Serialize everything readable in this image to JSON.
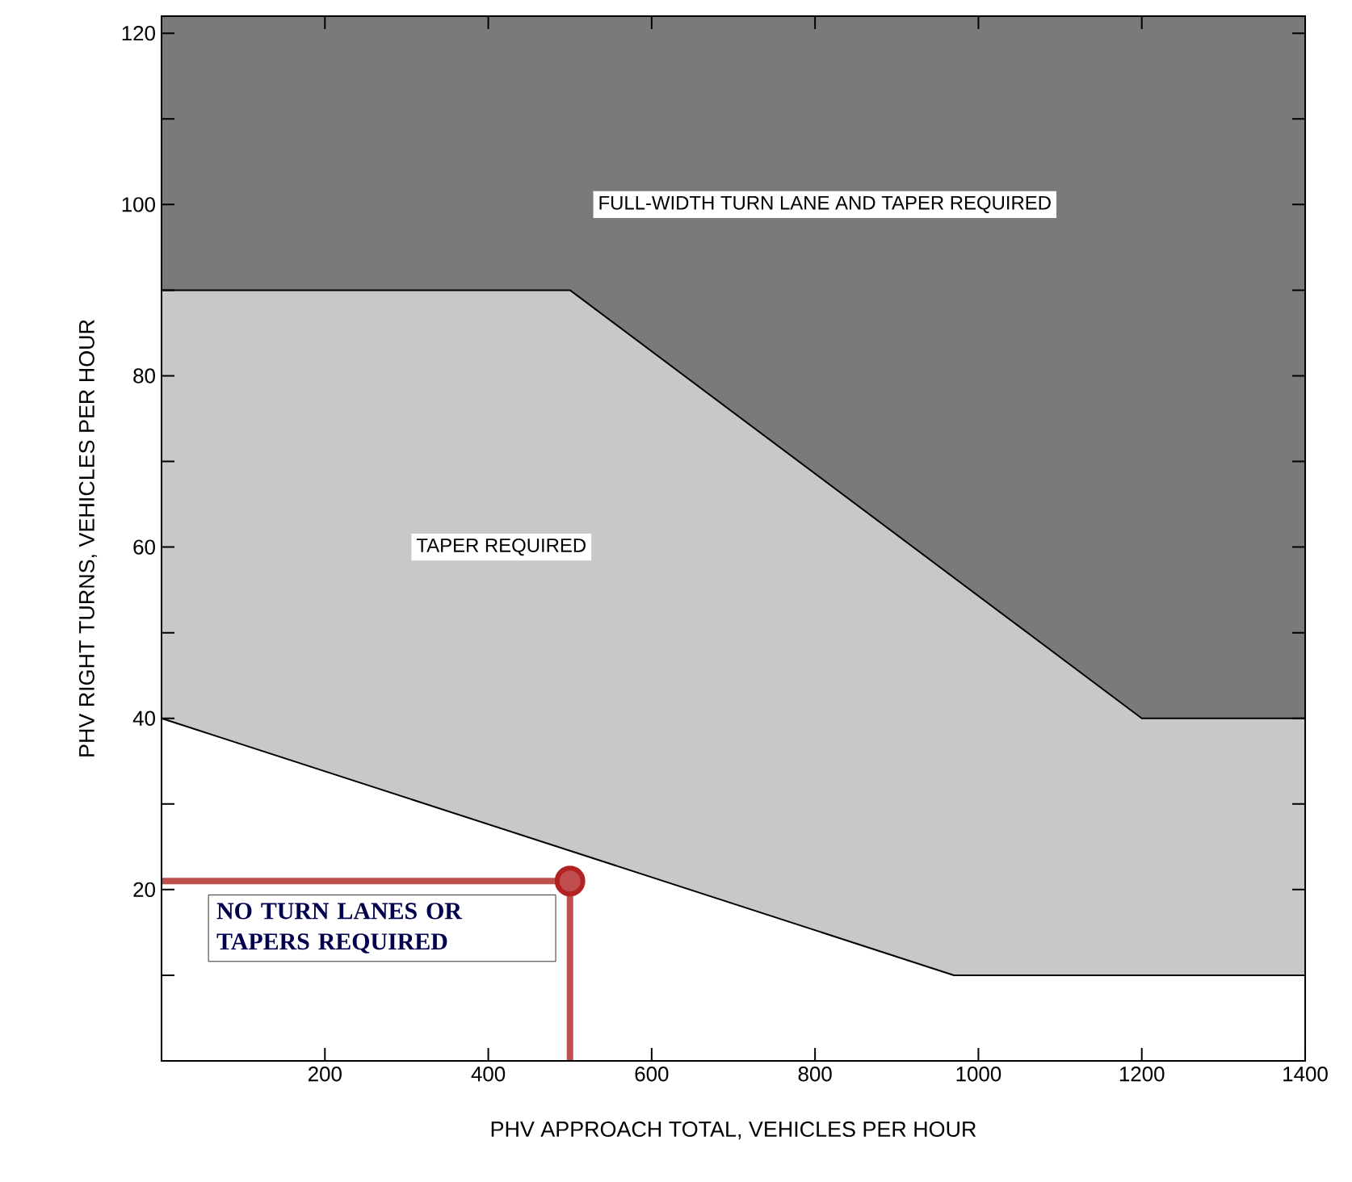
{
  "chart_data": {
    "type": "area",
    "xlabel": "PHV APPROACH TOTAL, VEHICLES PER HOUR",
    "ylabel": "PHV RIGHT TURNS, VEHICLES PER HOUR",
    "xlim": [
      0,
      1400
    ],
    "ylim": [
      0,
      122
    ],
    "xticks": [
      200,
      400,
      600,
      800,
      1000,
      1200,
      1400
    ],
    "yticks": [
      {
        "value": 10,
        "label": null
      },
      20,
      {
        "value": 30,
        "label": null
      },
      40,
      {
        "value": 50,
        "label": null
      },
      60,
      {
        "value": 70,
        "label": null
      },
      80,
      {
        "value": 90,
        "label": null
      },
      100,
      {
        "value": 110,
        "label": null
      },
      120
    ],
    "bands": [
      {
        "axis": "y",
        "from": 0,
        "to": 122,
        "color": "#7a7a7a"
      }
    ],
    "series": [
      {
        "x": [
          0,
          500,
          1200,
          1400
        ],
        "values": [
          90,
          90,
          40,
          40
        ],
        "color": "#c8c8c8"
      },
      {
        "x": [
          0,
          970,
          1400
        ],
        "values": [
          40,
          10,
          10
        ],
        "color": "#ffffff"
      },
      {
        "type": "line",
        "x": [
          0,
          500,
          500
        ],
        "values": [
          21,
          21,
          0
        ],
        "color": "#c0504d"
      },
      {
        "type": "scatter",
        "x": [
          500
        ],
        "values": [
          21
        ],
        "color": "#b22222",
        "marker": "circle"
      }
    ],
    "annotations": [
      "FULL-WIDTH TURN LANE AND TAPER REQUIRED",
      "TAPER REQUIRED",
      "NO TURN LANES OR TAPERS REQUIRED"
    ],
    "grid": false
  }
}
